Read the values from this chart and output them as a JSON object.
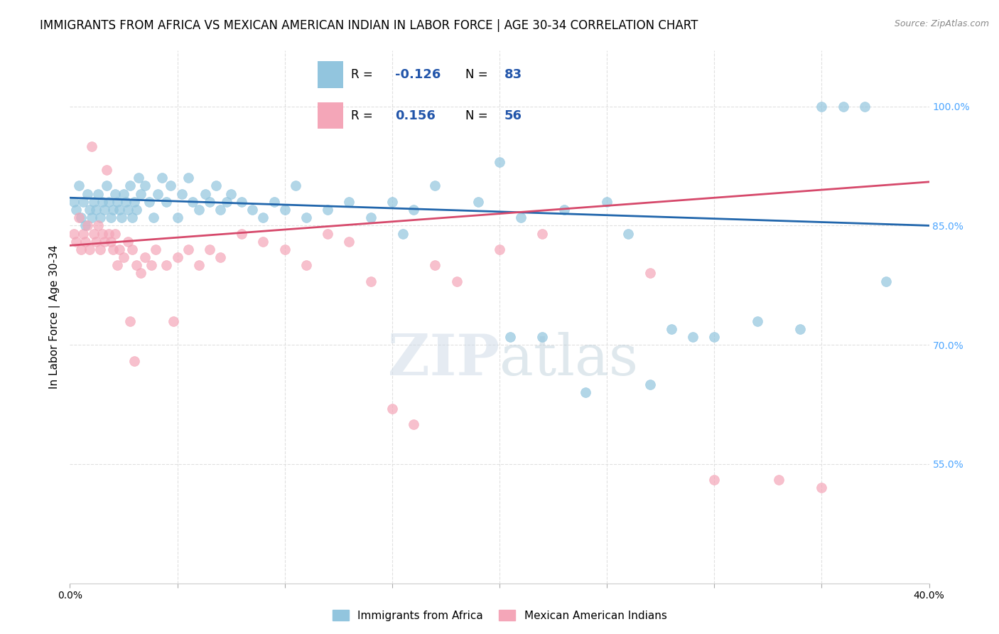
{
  "title": "IMMIGRANTS FROM AFRICA VS MEXICAN AMERICAN INDIAN IN LABOR FORCE | AGE 30-34 CORRELATION CHART",
  "source": "Source: ZipAtlas.com",
  "ylabel": "In Labor Force | Age 30-34",
  "x_min": 0.0,
  "x_max": 40.0,
  "y_min": 40.0,
  "y_max": 107.0,
  "legend_r_blue": "-0.126",
  "legend_n_blue": "83",
  "legend_r_pink": "0.156",
  "legend_n_pink": "56",
  "color_blue": "#92c5de",
  "color_pink": "#f4a6b8",
  "trendline_blue": "#2166ac",
  "trendline_pink": "#d6496b",
  "background_color": "#ffffff",
  "watermark": "ZIPatlas",
  "blue_trendline_x0": 0.0,
  "blue_trendline_y0": 88.5,
  "blue_trendline_x1": 40.0,
  "blue_trendline_y1": 85.0,
  "pink_trendline_x0": 0.0,
  "pink_trendline_y0": 82.5,
  "pink_trendline_x1": 40.0,
  "pink_trendline_y1": 90.5,
  "blue_points_x": [
    0.2,
    0.3,
    0.4,
    0.5,
    0.6,
    0.7,
    0.8,
    0.9,
    1.0,
    1.1,
    1.2,
    1.3,
    1.4,
    1.5,
    1.6,
    1.7,
    1.8,
    1.9,
    2.0,
    2.1,
    2.2,
    2.3,
    2.4,
    2.5,
    2.6,
    2.7,
    2.8,
    2.9,
    3.0,
    3.1,
    3.2,
    3.3,
    3.5,
    3.7,
    3.9,
    4.1,
    4.3,
    4.5,
    4.7,
    5.0,
    5.2,
    5.5,
    5.7,
    6.0,
    6.3,
    6.5,
    6.8,
    7.0,
    7.3,
    7.5,
    8.0,
    8.5,
    9.0,
    9.5,
    10.0,
    10.5,
    11.0,
    12.0,
    13.0,
    14.0,
    15.0,
    16.0,
    17.0,
    19.0,
    20.0,
    21.0,
    23.0,
    25.0,
    26.0,
    28.0,
    29.0,
    30.0,
    32.0,
    34.0,
    35.0,
    36.0,
    37.0,
    38.0,
    20.5,
    22.0,
    27.0,
    24.0,
    15.5
  ],
  "blue_points_y": [
    88.0,
    87.0,
    90.0,
    86.0,
    88.0,
    85.0,
    89.0,
    87.0,
    86.0,
    88.0,
    87.0,
    89.0,
    86.0,
    88.0,
    87.0,
    90.0,
    88.0,
    86.0,
    87.0,
    89.0,
    88.0,
    87.0,
    86.0,
    89.0,
    88.0,
    87.0,
    90.0,
    86.0,
    88.0,
    87.0,
    91.0,
    89.0,
    90.0,
    88.0,
    86.0,
    89.0,
    91.0,
    88.0,
    90.0,
    86.0,
    89.0,
    91.0,
    88.0,
    87.0,
    89.0,
    88.0,
    90.0,
    87.0,
    88.0,
    89.0,
    88.0,
    87.0,
    86.0,
    88.0,
    87.0,
    90.0,
    86.0,
    87.0,
    88.0,
    86.0,
    88.0,
    87.0,
    90.0,
    88.0,
    93.0,
    86.0,
    87.0,
    88.0,
    84.0,
    72.0,
    71.0,
    71.0,
    73.0,
    72.0,
    100.0,
    100.0,
    100.0,
    78.0,
    71.0,
    71.0,
    65.0,
    64.0,
    84.0
  ],
  "pink_points_x": [
    0.2,
    0.3,
    0.4,
    0.5,
    0.6,
    0.7,
    0.8,
    0.9,
    1.0,
    1.1,
    1.2,
    1.3,
    1.4,
    1.5,
    1.6,
    1.7,
    1.8,
    1.9,
    2.0,
    2.1,
    2.2,
    2.3,
    2.5,
    2.7,
    2.9,
    3.1,
    3.3,
    3.5,
    3.8,
    4.0,
    4.5,
    5.0,
    5.5,
    6.0,
    6.5,
    7.0,
    8.0,
    9.0,
    10.0,
    11.0,
    12.0,
    13.0,
    14.0,
    15.0,
    16.0,
    17.0,
    18.0,
    20.0,
    22.0,
    27.0,
    30.0,
    33.0,
    35.0,
    3.0,
    4.8,
    2.8
  ],
  "pink_points_y": [
    84.0,
    83.0,
    86.0,
    82.0,
    84.0,
    83.0,
    85.0,
    82.0,
    95.0,
    84.0,
    83.0,
    85.0,
    82.0,
    84.0,
    83.0,
    92.0,
    84.0,
    83.0,
    82.0,
    84.0,
    80.0,
    82.0,
    81.0,
    83.0,
    82.0,
    80.0,
    79.0,
    81.0,
    80.0,
    82.0,
    80.0,
    81.0,
    82.0,
    80.0,
    82.0,
    81.0,
    84.0,
    83.0,
    82.0,
    80.0,
    84.0,
    83.0,
    78.0,
    62.0,
    60.0,
    80.0,
    78.0,
    82.0,
    84.0,
    79.0,
    53.0,
    53.0,
    52.0,
    68.0,
    73.0,
    73.0
  ],
  "gridline_color": "#e0e0e0",
  "title_fontsize": 12,
  "axis_label_fontsize": 11,
  "tick_fontsize": 10,
  "right_tick_color": "#4da6ff"
}
